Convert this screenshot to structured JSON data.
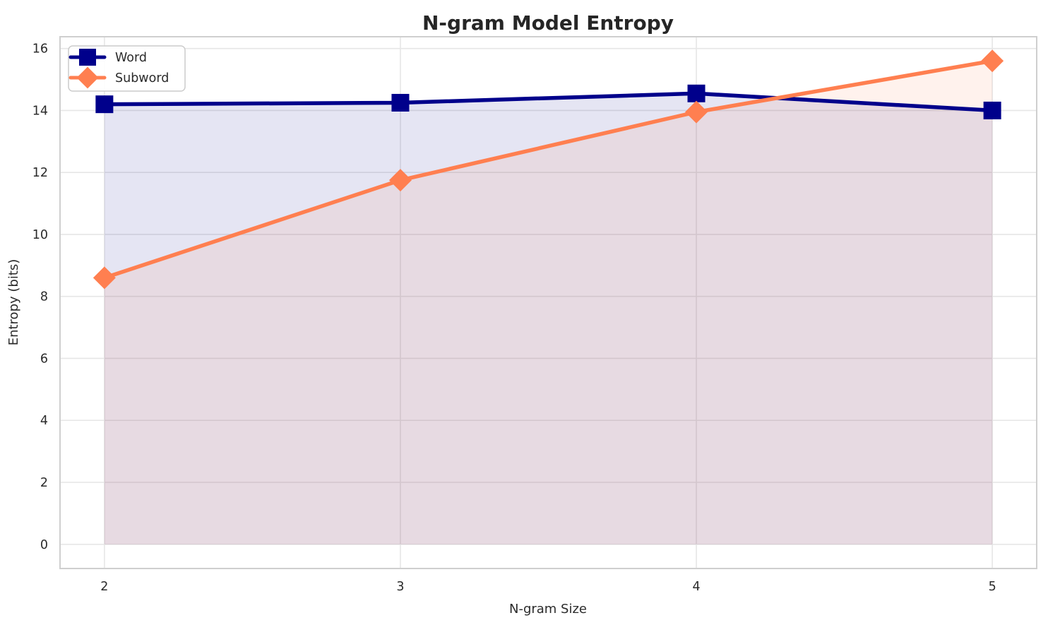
{
  "title": "N-gram Model Entropy",
  "axes": {
    "xlabel": "N-gram Size",
    "ylabel": "Entropy (bits)"
  },
  "legend": {
    "position": "upper-left",
    "items": [
      {
        "label": "Word",
        "marker": "square",
        "color": "#00008B"
      },
      {
        "label": "Subword",
        "marker": "diamond",
        "color": "#FF7F50"
      }
    ]
  },
  "colors": {
    "word": "#00008B",
    "subword": "#FF7F50",
    "grid": "#E6E6E6",
    "frame": "#CFCFCF",
    "text": "#2B2B2B",
    "title_color": "#262626",
    "legend_border": "#CCCCCC",
    "fill_alpha": 0.1
  },
  "chart_data": {
    "type": "line",
    "title": "N-gram Model Entropy",
    "xlabel": "N-gram Size",
    "ylabel": "Entropy (bits)",
    "x": [
      2,
      3,
      4,
      5
    ],
    "series": [
      {
        "name": "Word",
        "values": [
          14.2,
          14.25,
          14.55,
          14.0
        ],
        "color": "#00008B",
        "marker": "square",
        "fill_to_zero": true
      },
      {
        "name": "Subword",
        "values": [
          8.6,
          11.75,
          13.95,
          15.6
        ],
        "color": "#FF7F50",
        "marker": "diamond",
        "fill_to_zero": true
      }
    ],
    "xticks": [
      2,
      3,
      4,
      5
    ],
    "yticks": [
      0,
      2,
      4,
      6,
      8,
      10,
      12,
      14,
      16
    ],
    "xlim": [
      1.85,
      5.15
    ],
    "ylim": [
      -0.78,
      16.38
    ],
    "grid": true,
    "legend_position": "upper-left"
  }
}
